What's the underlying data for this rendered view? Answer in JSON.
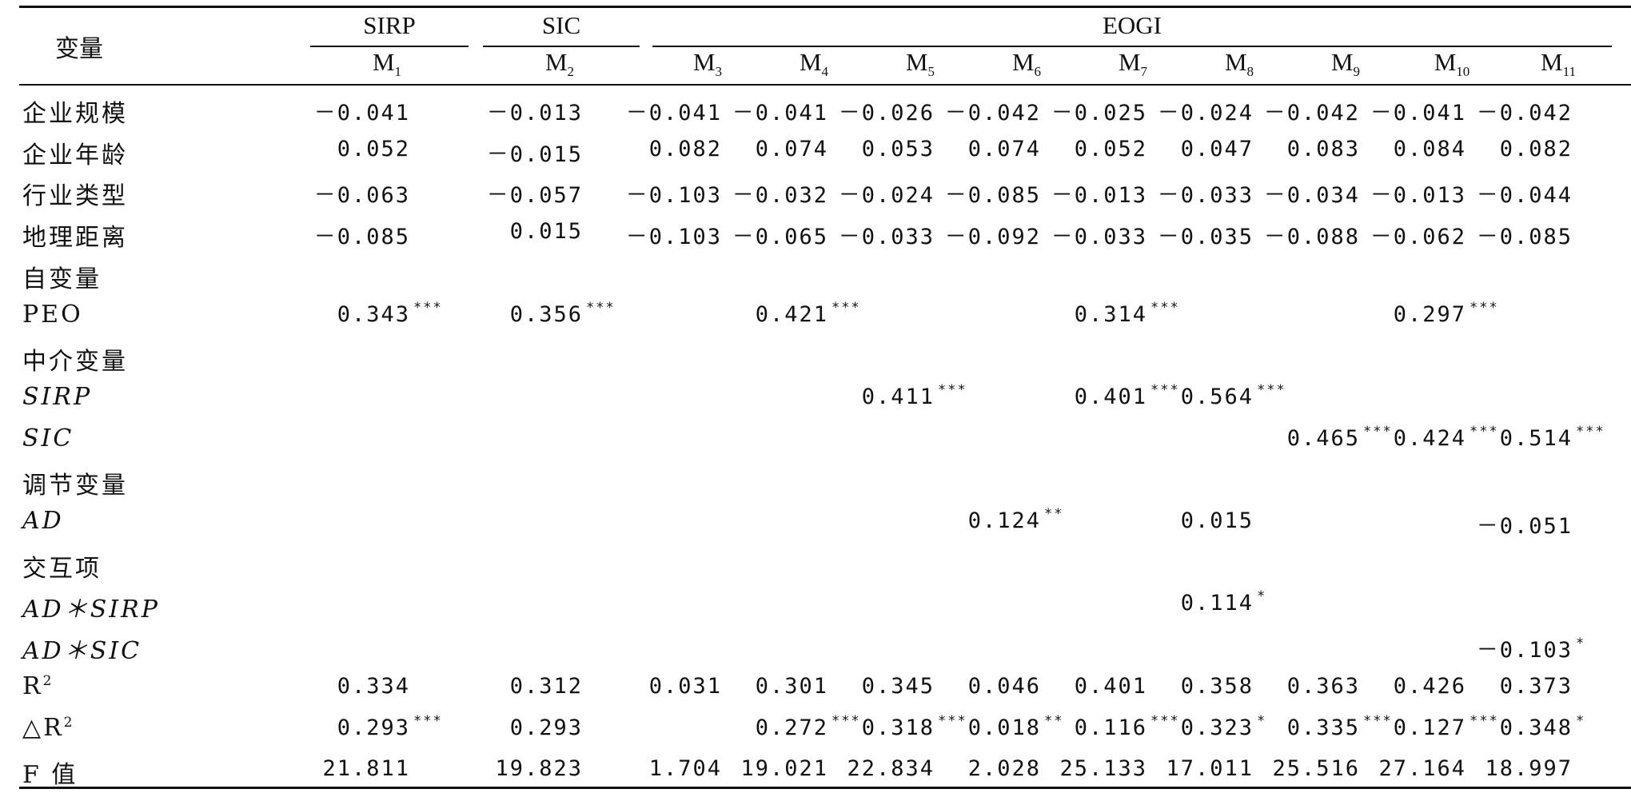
{
  "header": {
    "variable_label": "变量",
    "groups": [
      {
        "name": "SIRP",
        "models": [
          {
            "base": "M",
            "sub": "1"
          }
        ]
      },
      {
        "name": "SIC",
        "models": [
          {
            "base": "M",
            "sub": "2"
          }
        ]
      },
      {
        "name": "EOGI",
        "models": [
          {
            "base": "M",
            "sub": "3"
          },
          {
            "base": "M",
            "sub": "4"
          },
          {
            "base": "M",
            "sub": "5"
          },
          {
            "base": "M",
            "sub": "6"
          },
          {
            "base": "M",
            "sub": "7"
          },
          {
            "base": "M",
            "sub": "8"
          },
          {
            "base": "M",
            "sub": "9"
          },
          {
            "base": "M",
            "sub": "10"
          },
          {
            "base": "M",
            "sub": "11"
          }
        ]
      }
    ]
  },
  "rows": [
    {
      "label": "企业规模",
      "italic": false,
      "cells": [
        {
          "v": "－0.041",
          "s": ""
        },
        {
          "v": "－0.013",
          "s": ""
        },
        {
          "v": "－0.041",
          "s": ""
        },
        {
          "v": "－0.041",
          "s": ""
        },
        {
          "v": "－0.026",
          "s": ""
        },
        {
          "v": "－0.042",
          "s": ""
        },
        {
          "v": "－0.025",
          "s": ""
        },
        {
          "v": "－0.024",
          "s": ""
        },
        {
          "v": "－0.042",
          "s": ""
        },
        {
          "v": "－0.041",
          "s": ""
        },
        {
          "v": "－0.042",
          "s": ""
        }
      ]
    },
    {
      "label": "企业年龄",
      "italic": false,
      "cells": [
        {
          "v": "0.052",
          "s": ""
        },
        {
          "v": "－0.015",
          "s": ""
        },
        {
          "v": "0.082",
          "s": ""
        },
        {
          "v": "0.074",
          "s": ""
        },
        {
          "v": "0.053",
          "s": ""
        },
        {
          "v": "0.074",
          "s": ""
        },
        {
          "v": "0.052",
          "s": ""
        },
        {
          "v": "0.047",
          "s": ""
        },
        {
          "v": "0.083",
          "s": ""
        },
        {
          "v": "0.084",
          "s": ""
        },
        {
          "v": "0.082",
          "s": ""
        }
      ]
    },
    {
      "label": "行业类型",
      "italic": false,
      "cells": [
        {
          "v": "－0.063",
          "s": ""
        },
        {
          "v": "－0.057",
          "s": ""
        },
        {
          "v": "－0.103",
          "s": ""
        },
        {
          "v": "－0.032",
          "s": ""
        },
        {
          "v": "－0.024",
          "s": ""
        },
        {
          "v": "－0.085",
          "s": ""
        },
        {
          "v": "－0.013",
          "s": ""
        },
        {
          "v": "－0.033",
          "s": ""
        },
        {
          "v": "－0.034",
          "s": ""
        },
        {
          "v": "－0.013",
          "s": ""
        },
        {
          "v": "－0.044",
          "s": ""
        }
      ]
    },
    {
      "label": "地理距离",
      "italic": false,
      "cells": [
        {
          "v": "－0.085",
          "s": ""
        },
        {
          "v": "0.015",
          "s": ""
        },
        {
          "v": "－0.103",
          "s": ""
        },
        {
          "v": "－0.065",
          "s": ""
        },
        {
          "v": "－0.033",
          "s": ""
        },
        {
          "v": "－0.092",
          "s": ""
        },
        {
          "v": "－0.033",
          "s": ""
        },
        {
          "v": "－0.035",
          "s": ""
        },
        {
          "v": "－0.088",
          "s": ""
        },
        {
          "v": "－0.062",
          "s": ""
        },
        {
          "v": "－0.085",
          "s": ""
        }
      ]
    },
    {
      "label": "自变量",
      "italic": false,
      "cells": []
    },
    {
      "label": "PEO",
      "italic": false,
      "cells": [
        {
          "v": "0.343",
          "s": "***"
        },
        {
          "v": "0.356",
          "s": "***"
        },
        {
          "v": "",
          "s": ""
        },
        {
          "v": "0.421",
          "s": "***"
        },
        {
          "v": "",
          "s": ""
        },
        {
          "v": "",
          "s": ""
        },
        {
          "v": "0.314",
          "s": "***"
        },
        {
          "v": "",
          "s": ""
        },
        {
          "v": "",
          "s": ""
        },
        {
          "v": "0.297",
          "s": "***"
        },
        {
          "v": "",
          "s": ""
        }
      ]
    },
    {
      "label": "中介变量",
      "italic": false,
      "cells": []
    },
    {
      "label": "SIRP",
      "italic": true,
      "cells": [
        {
          "v": "",
          "s": ""
        },
        {
          "v": "",
          "s": ""
        },
        {
          "v": "",
          "s": ""
        },
        {
          "v": "",
          "s": ""
        },
        {
          "v": "0.411",
          "s": "***"
        },
        {
          "v": "",
          "s": ""
        },
        {
          "v": "0.401",
          "s": "***"
        },
        {
          "v": "0.564",
          "s": "***"
        },
        {
          "v": "",
          "s": ""
        },
        {
          "v": "",
          "s": ""
        },
        {
          "v": "",
          "s": ""
        }
      ]
    },
    {
      "label": "SIC",
      "italic": true,
      "cells": [
        {
          "v": "",
          "s": ""
        },
        {
          "v": "",
          "s": ""
        },
        {
          "v": "",
          "s": ""
        },
        {
          "v": "",
          "s": ""
        },
        {
          "v": "",
          "s": ""
        },
        {
          "v": "",
          "s": ""
        },
        {
          "v": "",
          "s": ""
        },
        {
          "v": "",
          "s": ""
        },
        {
          "v": "0.465",
          "s": "***"
        },
        {
          "v": "0.424",
          "s": "***"
        },
        {
          "v": "0.514",
          "s": "***"
        }
      ]
    },
    {
      "label": "调节变量",
      "italic": false,
      "cells": []
    },
    {
      "label": "AD",
      "italic": true,
      "cells": [
        {
          "v": "",
          "s": ""
        },
        {
          "v": "",
          "s": ""
        },
        {
          "v": "",
          "s": ""
        },
        {
          "v": "",
          "s": ""
        },
        {
          "v": "",
          "s": ""
        },
        {
          "v": "0.124",
          "s": "**"
        },
        {
          "v": "",
          "s": ""
        },
        {
          "v": "0.015",
          "s": ""
        },
        {
          "v": "",
          "s": ""
        },
        {
          "v": "",
          "s": ""
        },
        {
          "v": "－0.051",
          "s": ""
        }
      ]
    },
    {
      "label": "交互项",
      "italic": false,
      "cells": []
    },
    {
      "label": "AD＊SIRP",
      "italic": true,
      "cells": [
        {
          "v": "",
          "s": ""
        },
        {
          "v": "",
          "s": ""
        },
        {
          "v": "",
          "s": ""
        },
        {
          "v": "",
          "s": ""
        },
        {
          "v": "",
          "s": ""
        },
        {
          "v": "",
          "s": ""
        },
        {
          "v": "",
          "s": ""
        },
        {
          "v": "0.114",
          "s": "*"
        },
        {
          "v": "",
          "s": ""
        },
        {
          "v": "",
          "s": ""
        },
        {
          "v": "",
          "s": ""
        }
      ]
    },
    {
      "label": "AD＊SIC",
      "italic": true,
      "cells": [
        {
          "v": "",
          "s": ""
        },
        {
          "v": "",
          "s": ""
        },
        {
          "v": "",
          "s": ""
        },
        {
          "v": "",
          "s": ""
        },
        {
          "v": "",
          "s": ""
        },
        {
          "v": "",
          "s": ""
        },
        {
          "v": "",
          "s": ""
        },
        {
          "v": "",
          "s": ""
        },
        {
          "v": "",
          "s": ""
        },
        {
          "v": "",
          "s": ""
        },
        {
          "v": "－0.103",
          "s": "*"
        }
      ]
    },
    {
      "label": "R2",
      "italic": false,
      "sup": "2",
      "base": "R",
      "cells": [
        {
          "v": "0.334",
          "s": ""
        },
        {
          "v": "0.312",
          "s": ""
        },
        {
          "v": "0.031",
          "s": ""
        },
        {
          "v": "0.301",
          "s": ""
        },
        {
          "v": "0.345",
          "s": ""
        },
        {
          "v": "0.046",
          "s": ""
        },
        {
          "v": "0.401",
          "s": ""
        },
        {
          "v": "0.358",
          "s": ""
        },
        {
          "v": "0.363",
          "s": ""
        },
        {
          "v": "0.426",
          "s": ""
        },
        {
          "v": "0.373",
          "s": ""
        }
      ]
    },
    {
      "label": "△R2",
      "italic": false,
      "sup": "2",
      "base": "△R",
      "cells": [
        {
          "v": "0.293",
          "s": "***"
        },
        {
          "v": "0.293",
          "s": ""
        },
        {
          "v": "",
          "s": ""
        },
        {
          "v": "0.272",
          "s": "***"
        },
        {
          "v": "0.318",
          "s": "***"
        },
        {
          "v": "0.018",
          "s": "**"
        },
        {
          "v": "0.116",
          "s": "***"
        },
        {
          "v": "0.323",
          "s": "*"
        },
        {
          "v": "0.335",
          "s": "***"
        },
        {
          "v": "0.127",
          "s": "***"
        },
        {
          "v": "0.348",
          "s": "*"
        }
      ]
    },
    {
      "label": "F 值",
      "italic": false,
      "cells": [
        {
          "v": "21.811",
          "s": ""
        },
        {
          "v": "19.823",
          "s": ""
        },
        {
          "v": "1.704",
          "s": ""
        },
        {
          "v": "19.021",
          "s": ""
        },
        {
          "v": "22.834",
          "s": ""
        },
        {
          "v": "2.028",
          "s": ""
        },
        {
          "v": "25.133",
          "s": ""
        },
        {
          "v": "17.011",
          "s": ""
        },
        {
          "v": "25.516",
          "s": ""
        },
        {
          "v": "27.164",
          "s": ""
        },
        {
          "v": "18.997",
          "s": ""
        }
      ]
    }
  ]
}
